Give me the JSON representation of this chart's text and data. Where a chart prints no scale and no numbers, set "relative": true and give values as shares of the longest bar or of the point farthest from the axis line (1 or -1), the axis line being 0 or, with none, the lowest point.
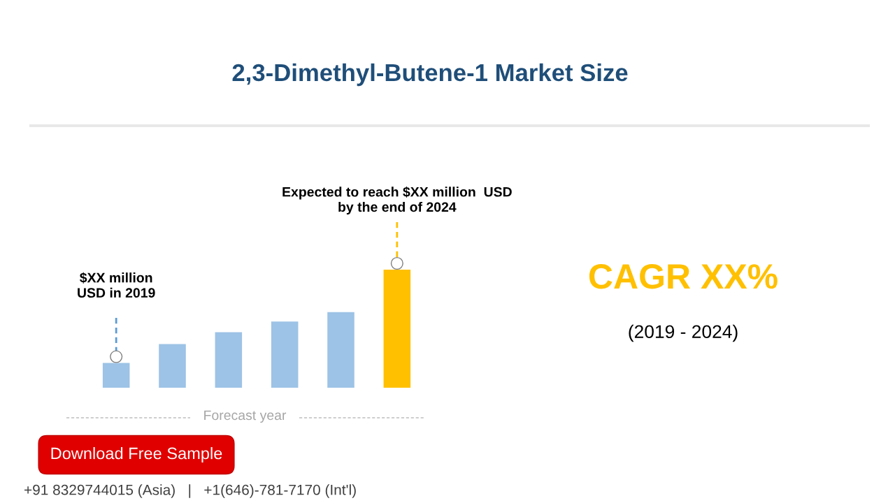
{
  "chart_data": {
    "type": "bar",
    "title": "2,3-Dimethyl-Butene-1 Market Size",
    "relative": true,
    "categories": [
      null,
      null,
      null,
      null,
      null,
      null
    ],
    "values": [
      0.21,
      0.37,
      0.47,
      0.56,
      0.64,
      1
    ],
    "colors": [
      "#9dc3e6",
      "#9dc3e6",
      "#9dc3e6",
      "#9dc3e6",
      "#9dc3e6",
      "#ffc000"
    ],
    "xlabel": "Forecast year",
    "annotations": [
      "$XX million\nUSD in 2019",
      "Expected to reach $XX million  USD\nby the end of 2024",
      "CAGR XX%",
      "(2019 - 2024)",
      "Download Free Sample",
      "+91 8329744015 (Asia)   |   +1(646)-781-7170 (Int'l)"
    ],
    "grid": false,
    "legend": false
  }
}
